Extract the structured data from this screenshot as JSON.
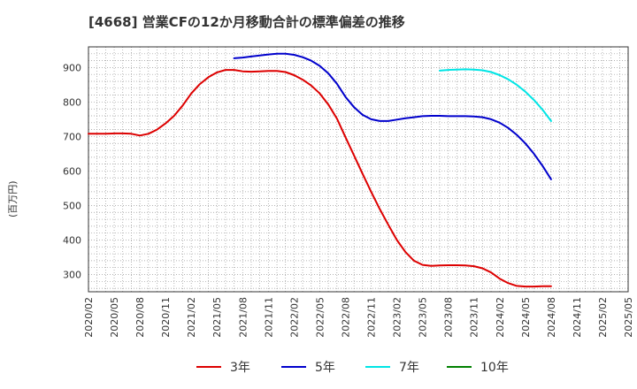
{
  "title": "[4668]  営業CFの12か月移動合計の標準偏差の推移",
  "ylabel": "(百万円)",
  "legend": [
    {
      "label": "3年",
      "color": "#dd0000"
    },
    {
      "label": "5年",
      "color": "#0000cc"
    },
    {
      "label": "7年",
      "color": "#00e5e5"
    },
    {
      "label": "10年",
      "color": "#008000"
    }
  ],
  "chart_data": {
    "type": "line",
    "title": "[4668]  営業CFの12か月移動合計の標準偏差の推移",
    "ylabel": "(百万円)",
    "xlabel": "",
    "ylim": [
      250,
      960
    ],
    "yticks": [
      300,
      400,
      500,
      600,
      700,
      800,
      900
    ],
    "grid": true,
    "legend_position": "bottom",
    "x_start": "2020/02",
    "x_end": "2025/05",
    "xticks": [
      "2020/02",
      "2020/05",
      "2020/08",
      "2020/11",
      "2021/02",
      "2021/05",
      "2021/08",
      "2021/11",
      "2022/02",
      "2022/05",
      "2022/08",
      "2022/11",
      "2023/02",
      "2023/05",
      "2023/08",
      "2023/11",
      "2024/02",
      "2024/05",
      "2024/08",
      "2024/11",
      "2025/02",
      "2025/05"
    ],
    "series": [
      {
        "name": "3年",
        "color": "#dd0000",
        "x": [
          "2020/02",
          "2020/03",
          "2020/04",
          "2020/05",
          "2020/06",
          "2020/07",
          "2020/08",
          "2020/09",
          "2020/10",
          "2020/11",
          "2020/12",
          "2021/01",
          "2021/02",
          "2021/03",
          "2021/04",
          "2021/05",
          "2021/06",
          "2021/07",
          "2021/08",
          "2021/09",
          "2021/10",
          "2021/11",
          "2021/12",
          "2022/01",
          "2022/02",
          "2022/03",
          "2022/04",
          "2022/05",
          "2022/06",
          "2022/07",
          "2022/08",
          "2022/09",
          "2022/10",
          "2022/11",
          "2022/12",
          "2023/01",
          "2023/02",
          "2023/03",
          "2023/04",
          "2023/05",
          "2023/06",
          "2023/07",
          "2023/08",
          "2023/09",
          "2023/10",
          "2023/11",
          "2023/12",
          "2024/01",
          "2024/02",
          "2024/03",
          "2024/04",
          "2024/05",
          "2024/06",
          "2024/07",
          "2024/08"
        ],
        "values": [
          708,
          708,
          708,
          709,
          709,
          708,
          703,
          708,
          720,
          738,
          760,
          790,
          825,
          852,
          872,
          886,
          893,
          893,
          889,
          888,
          889,
          890,
          890,
          887,
          878,
          865,
          848,
          825,
          793,
          752,
          698,
          645,
          592,
          540,
          490,
          444,
          400,
          365,
          340,
          328,
          325,
          326,
          327,
          327,
          326,
          324,
          318,
          306,
          288,
          275,
          267,
          265,
          265,
          266,
          266
        ]
      },
      {
        "name": "5年",
        "color": "#0000cc",
        "x": [
          "2021/07",
          "2021/08",
          "2021/09",
          "2021/10",
          "2021/11",
          "2021/12",
          "2022/01",
          "2022/02",
          "2022/03",
          "2022/04",
          "2022/05",
          "2022/06",
          "2022/07",
          "2022/08",
          "2022/09",
          "2022/10",
          "2022/11",
          "2022/12",
          "2023/01",
          "2023/02",
          "2023/03",
          "2023/04",
          "2023/05",
          "2023/06",
          "2023/07",
          "2023/08",
          "2023/09",
          "2023/10",
          "2023/11",
          "2023/12",
          "2024/01",
          "2024/02",
          "2024/03",
          "2024/04",
          "2024/05",
          "2024/06",
          "2024/07",
          "2024/08"
        ],
        "values": [
          927,
          929,
          932,
          935,
          938,
          940,
          940,
          937,
          930,
          920,
          905,
          883,
          853,
          815,
          785,
          763,
          750,
          745,
          745,
          749,
          753,
          756,
          759,
          760,
          760,
          759,
          759,
          759,
          758,
          756,
          750,
          740,
          725,
          705,
          680,
          650,
          615,
          576
        ]
      },
      {
        "name": "7年",
        "color": "#00e5e5",
        "x": [
          "2023/07",
          "2023/08",
          "2023/09",
          "2023/10",
          "2023/11",
          "2023/12",
          "2024/01",
          "2024/02",
          "2024/03",
          "2024/04",
          "2024/05",
          "2024/06",
          "2024/07",
          "2024/08"
        ],
        "values": [
          891,
          893,
          894,
          895,
          894,
          892,
          887,
          878,
          866,
          850,
          830,
          806,
          778,
          745
        ]
      },
      {
        "name": "10年",
        "color": "#008000",
        "x": [],
        "values": []
      }
    ]
  }
}
